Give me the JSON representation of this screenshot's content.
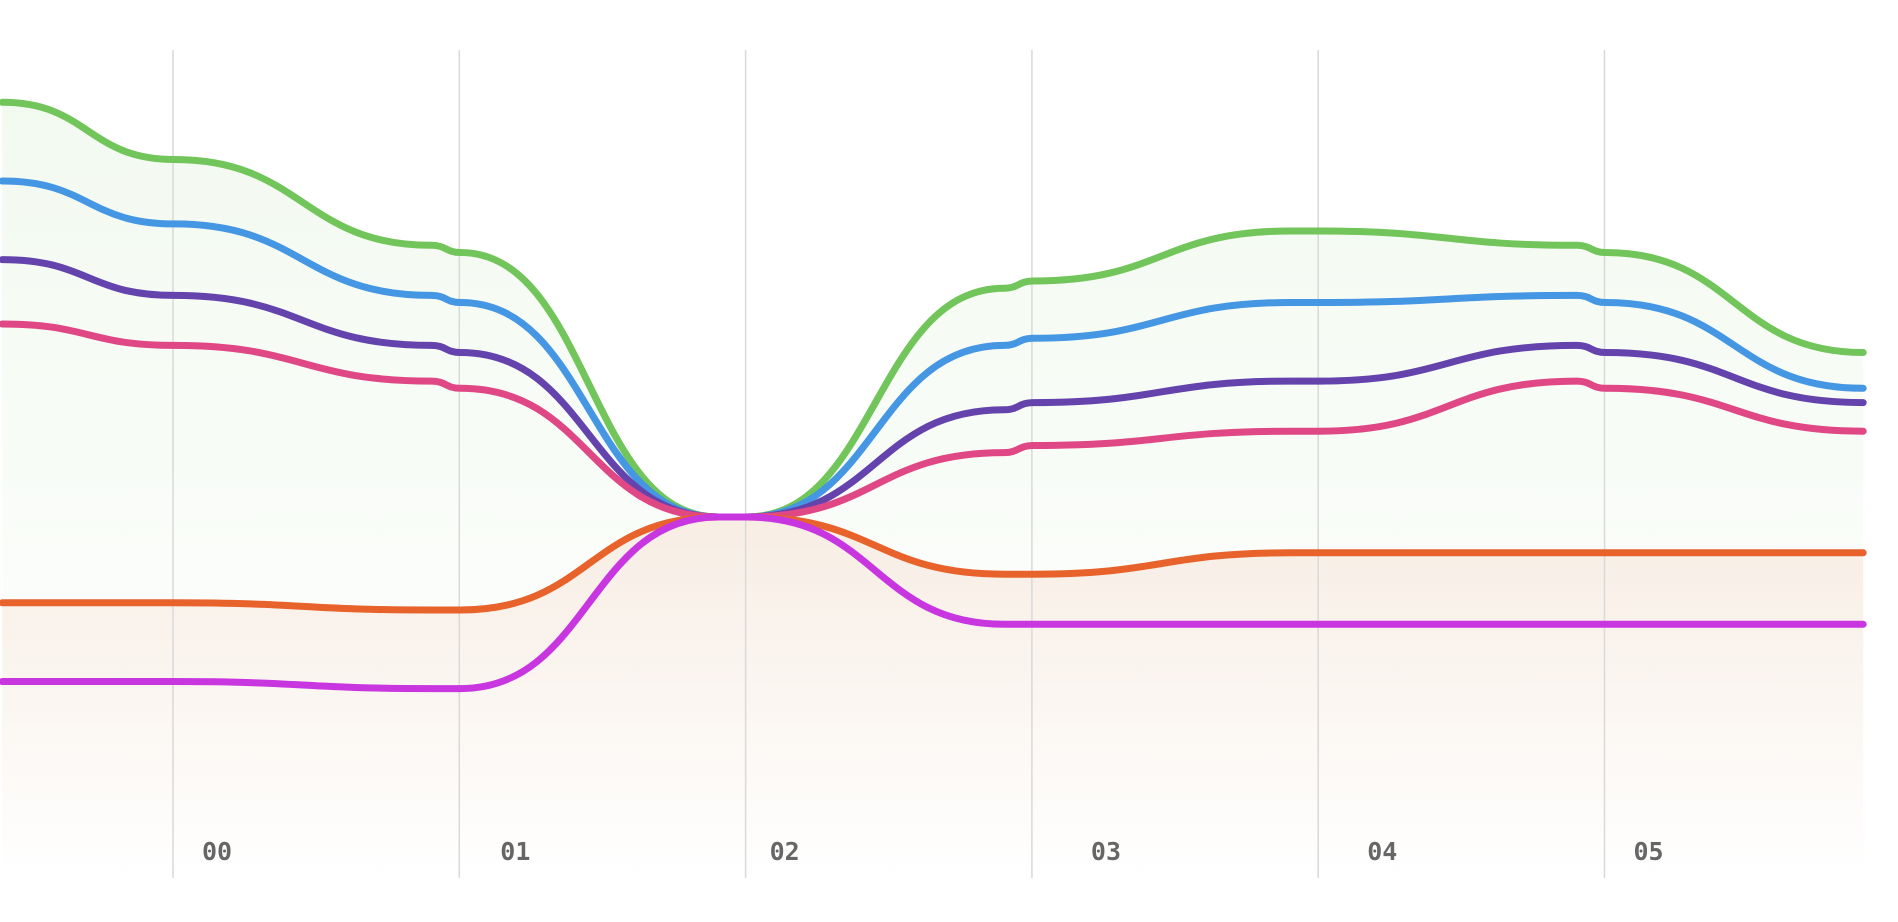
{
  "chart_data": {
    "type": "line",
    "x_ticks": [
      "00",
      "01",
      "02",
      "03",
      "04",
      "05"
    ],
    "x": [
      -0.6,
      0.0,
      0.9,
      1.0,
      1.9,
      2.0,
      2.9,
      3.0,
      3.9,
      4.0,
      4.9,
      5.0,
      5.9
    ],
    "grid": true,
    "legend": "none",
    "series": [
      {
        "color": "#72c55a",
        "values": [
          7.9,
          7.5,
          6.9,
          6.85,
          5.0,
          5.0,
          6.6,
          6.65,
          7.0,
          7.0,
          6.9,
          6.85,
          6.15
        ]
      },
      {
        "color": "#4596e3",
        "values": [
          7.35,
          7.05,
          6.55,
          6.5,
          5.0,
          5.0,
          6.2,
          6.25,
          6.5,
          6.5,
          6.55,
          6.5,
          5.9
        ]
      },
      {
        "color": "#6443ad",
        "values": [
          6.8,
          6.55,
          6.2,
          6.15,
          5.0,
          5.0,
          5.75,
          5.8,
          5.95,
          5.95,
          6.2,
          6.15,
          5.8
        ]
      },
      {
        "color": "#df4785",
        "values": [
          6.35,
          6.2,
          5.95,
          5.9,
          5.0,
          5.0,
          5.45,
          5.5,
          5.6,
          5.6,
          5.95,
          5.9,
          5.6
        ]
      },
      {
        "color": "#e8622c",
        "values": [
          4.4,
          4.4,
          4.35,
          4.35,
          5.0,
          5.0,
          4.6,
          4.6,
          4.75,
          4.75,
          4.75,
          4.75,
          4.75
        ]
      },
      {
        "color": "#c836e0",
        "values": [
          3.85,
          3.85,
          3.8,
          3.8,
          5.0,
          5.0,
          4.25,
          4.25,
          4.25,
          4.25,
          4.25,
          4.25,
          4.25
        ]
      }
    ]
  }
}
